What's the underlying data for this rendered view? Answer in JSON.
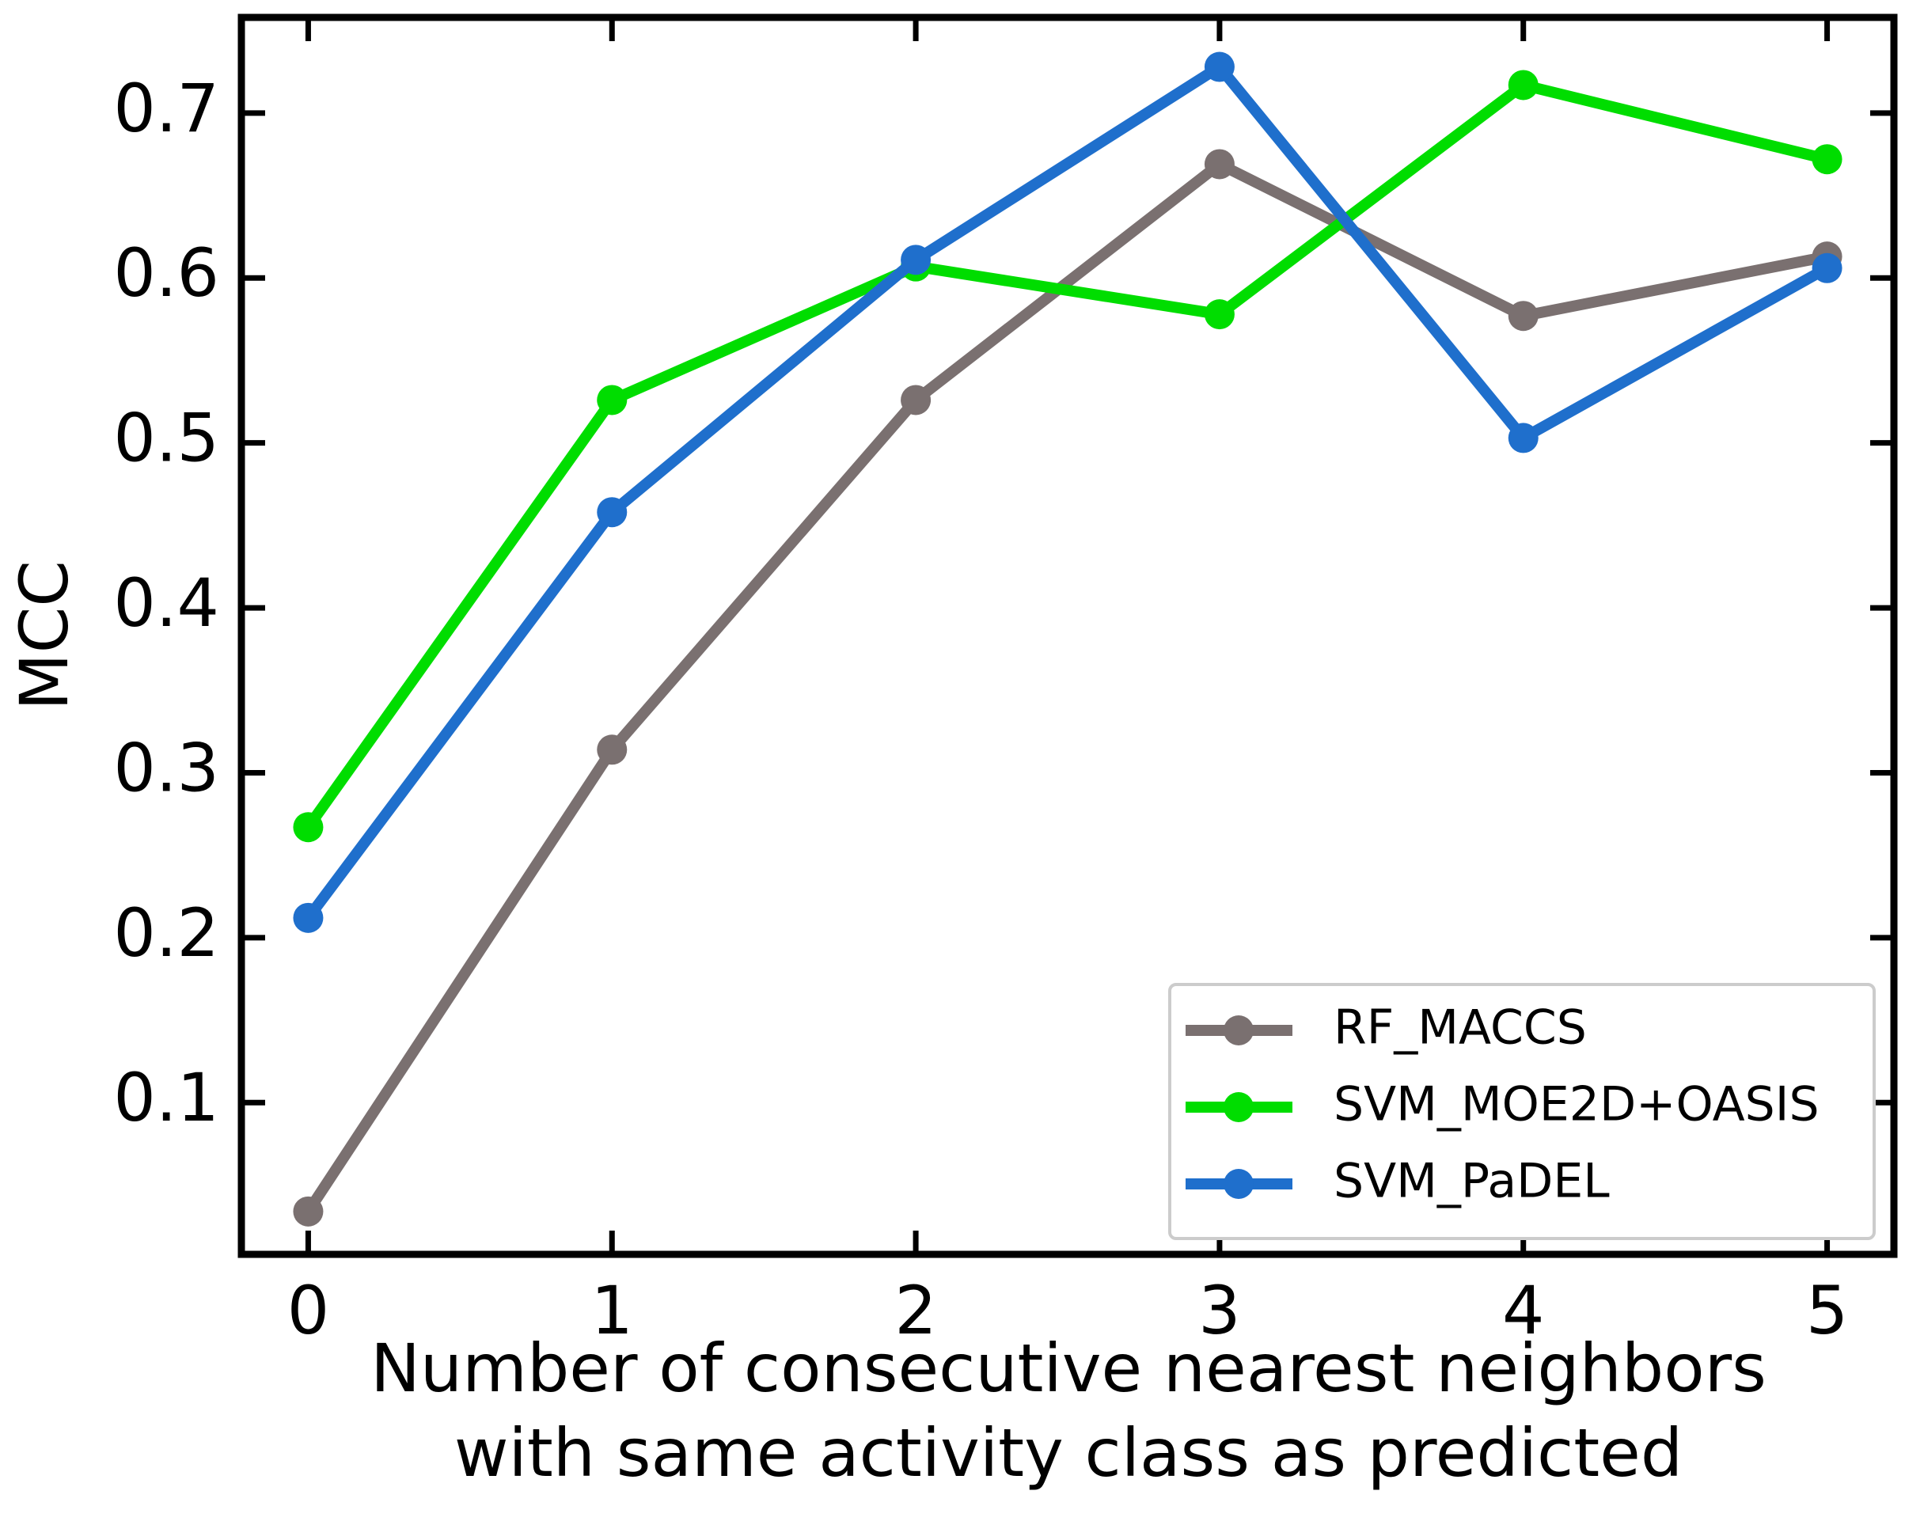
{
  "chart_data": {
    "type": "line",
    "title": "",
    "xlabel_lines": [
      "Number of consecutive nearest neighbors",
      "with same activity class as predicted"
    ],
    "ylabel": "MCC",
    "x": [
      0,
      1,
      2,
      3,
      4,
      5
    ],
    "x_tick_labels": [
      "0",
      "1",
      "2",
      "3",
      "4",
      "5"
    ],
    "y_ticks": [
      0.1,
      0.2,
      0.3,
      0.4,
      0.5,
      0.6,
      0.7
    ],
    "y_tick_labels": [
      "0.1",
      "0.2",
      "0.3",
      "0.4",
      "0.5",
      "0.6",
      "0.7"
    ],
    "xlim": [
      -0.22,
      5.22
    ],
    "ylim": [
      0.008,
      0.758
    ],
    "grid": false,
    "legend_position": "bottom-right",
    "series": [
      {
        "name": "RF_MACCS",
        "color": "#7a7070",
        "values": [
          0.034,
          0.314,
          0.526,
          0.669,
          0.577,
          0.613
        ]
      },
      {
        "name": "SVM_MOE2D+OASIS",
        "color": "#00dd00",
        "values": [
          0.267,
          0.526,
          0.607,
          0.578,
          0.717,
          0.672
        ]
      },
      {
        "name": "SVM_PaDEL",
        "color": "#1f6fcc",
        "values": [
          0.212,
          0.458,
          0.611,
          0.728,
          0.503,
          0.606
        ]
      }
    ]
  }
}
